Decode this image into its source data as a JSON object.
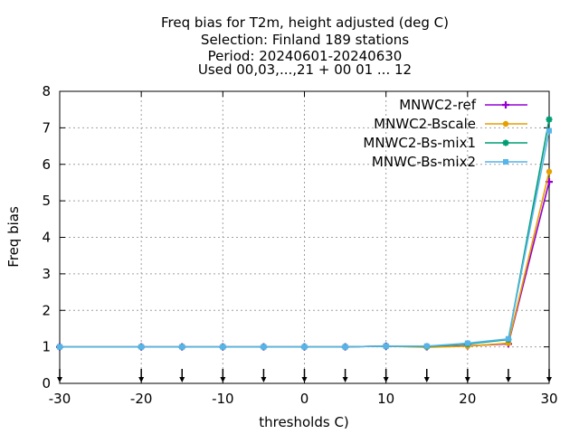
{
  "chart_data": {
    "type": "line",
    "title_lines": [
      "Freq bias  for T2m, height adjusted (deg C)",
      "Selection: Finland     189 stations",
      "Period: 20240601-20240630",
      "Used 00,03,...,21 + 00 01 ... 12"
    ],
    "xlabel": "thresholds C)",
    "ylabel": "Freq bias",
    "xlim": [
      -30,
      30
    ],
    "ylim": [
      0,
      8
    ],
    "xticks": [
      -30,
      -20,
      -10,
      0,
      10,
      20,
      30
    ],
    "yticks": [
      0,
      1,
      2,
      3,
      4,
      5,
      6,
      7,
      8
    ],
    "grid": true,
    "legend_position": "top-right",
    "threshold_markers": [
      -30,
      -20,
      -15,
      -10,
      -5,
      0,
      5,
      10,
      15,
      20,
      25,
      30
    ],
    "x": [
      -30,
      -20,
      -15,
      -10,
      -5,
      0,
      5,
      10,
      15,
      20,
      25,
      30
    ],
    "series": [
      {
        "name": "MNWC2-ref",
        "color": "#9400d3",
        "marker": "plus",
        "values": [
          1.0,
          1.0,
          1.0,
          1.0,
          1.0,
          1.0,
          1.0,
          1.02,
          1.0,
          1.03,
          1.08,
          5.52
        ]
      },
      {
        "name": "MNWC2-Bscale",
        "color": "#e69f00",
        "marker": "dot",
        "values": [
          1.0,
          1.0,
          1.0,
          1.0,
          1.0,
          1.0,
          1.0,
          1.02,
          0.99,
          1.02,
          1.1,
          5.8
        ]
      },
      {
        "name": "MNWC2-Bs-mix1",
        "color": "#009e73",
        "marker": "star",
        "values": [
          1.0,
          1.0,
          1.0,
          1.0,
          1.0,
          1.0,
          1.0,
          1.02,
          1.01,
          1.08,
          1.2,
          7.23
        ]
      },
      {
        "name": "MNWC-Bs-mix2",
        "color": "#56b4e9",
        "marker": "box",
        "values": [
          1.0,
          1.0,
          1.0,
          1.0,
          1.0,
          1.0,
          1.0,
          1.02,
          1.02,
          1.1,
          1.22,
          6.92
        ]
      }
    ]
  }
}
